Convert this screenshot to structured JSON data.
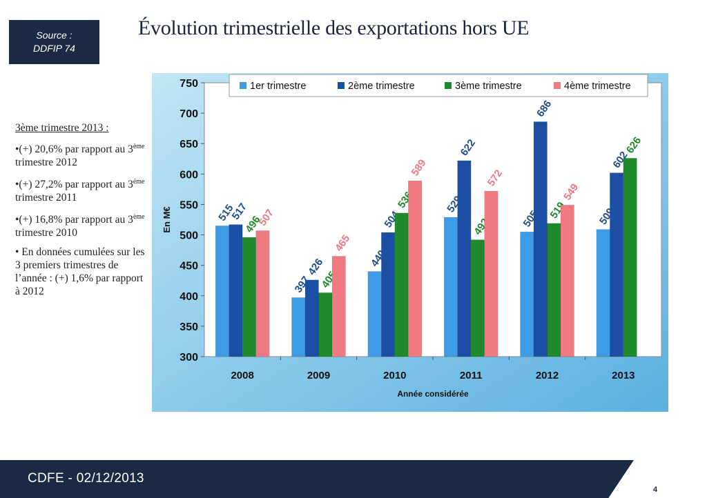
{
  "source": {
    "line1": "Source :",
    "line2": "DDFIP 74"
  },
  "title": "Évolution trimestrielle des exportations hors UE",
  "notes": {
    "heading": "3ème trimestre 2013 :",
    "items": [
      {
        "prefix": "•(+) 20,6% par rapport au 3",
        "sup": "ème",
        "suffix": " trimestre 2012"
      },
      {
        "prefix": "•(+) 27,2% par rapport au 3",
        "sup": "ème",
        "suffix": " trimestre 2011"
      },
      {
        "prefix": "•(+) 16,8% par rapport au 3",
        "sup": "ème",
        "suffix": " trimestre 2010"
      }
    ],
    "cumulative": "• En données cumulées sur les 3 premiers trimestres de l’année : (+) 1,6% par rapport à 2012"
  },
  "footer": {
    "text": "CDFE - 02/12/2013",
    "page": "4"
  },
  "chart_data": {
    "type": "bar",
    "categories": [
      "2008",
      "2009",
      "2010",
      "2011",
      "2012",
      "2013"
    ],
    "series": [
      {
        "name": "1er trimestre",
        "color": "#3e9be6",
        "label_color": "#1f4e8c",
        "values": [
          515,
          397,
          440,
          529,
          505,
          509
        ]
      },
      {
        "name": "2ème trimestre",
        "color": "#1a4fa3",
        "label_color": "#1f4e8c",
        "values": [
          517,
          426,
          504,
          622,
          686,
          602
        ]
      },
      {
        "name": "3ème trimestre",
        "color": "#1e8a2c",
        "label_color": "#1e8a2c",
        "values": [
          496,
          405,
          536,
          492,
          519,
          626
        ]
      },
      {
        "name": "4ème trimestre",
        "color": "#f07a82",
        "label_color": "#f07a82",
        "values": [
          507,
          465,
          589,
          572,
          549,
          null
        ]
      }
    ],
    "ylabel": "En M€",
    "xlabel": "Année considérée",
    "ylim": [
      300,
      750
    ],
    "yticks": [
      300,
      350,
      400,
      450,
      500,
      550,
      600,
      650,
      700,
      750
    ],
    "legend": "top",
    "grid": false,
    "background_gradient": [
      "#c2e6f5",
      "#5ab0e0"
    ]
  }
}
